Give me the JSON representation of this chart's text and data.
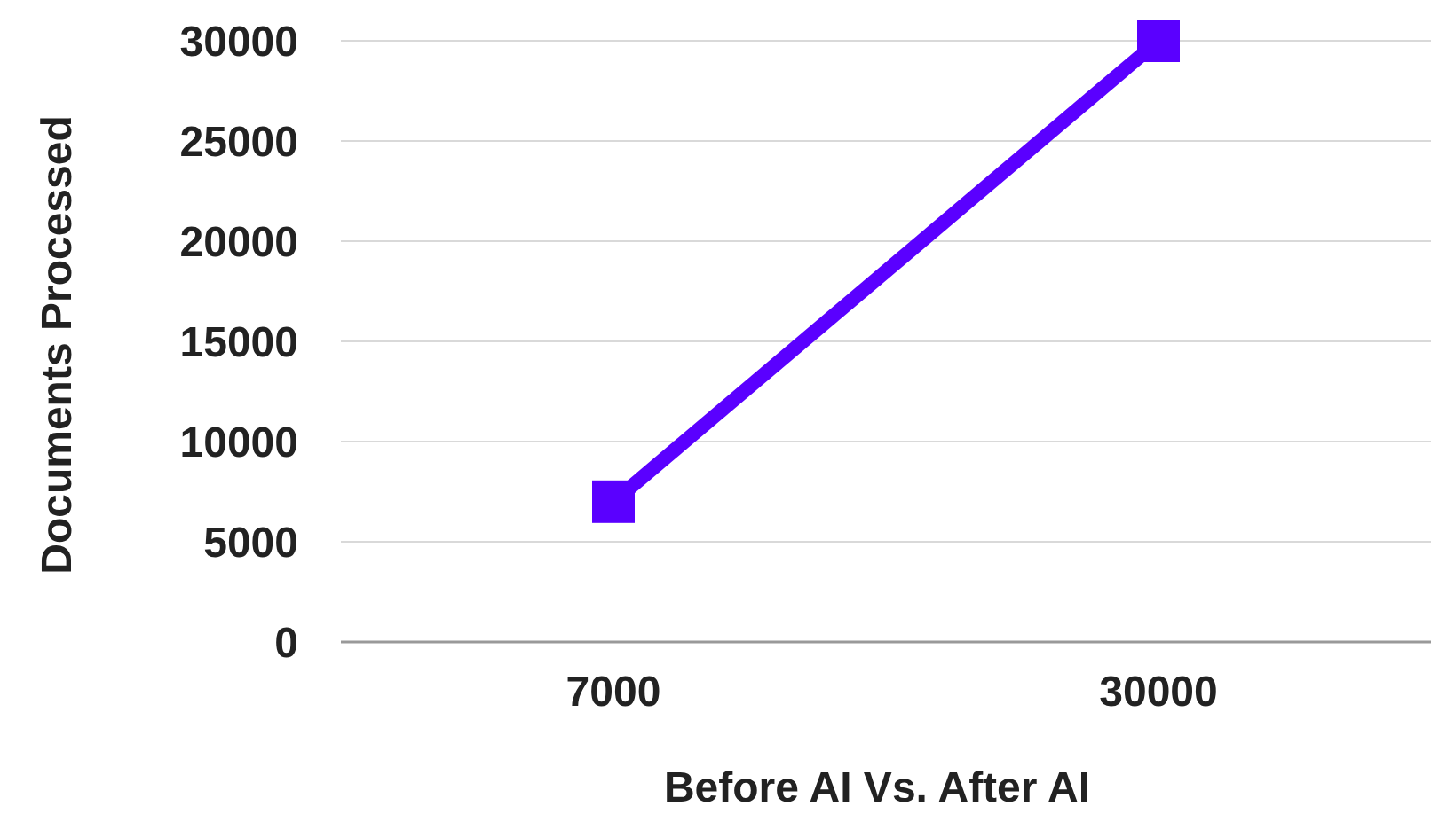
{
  "chart_data": {
    "type": "line",
    "xlabel": "Before AI Vs. After AI",
    "ylabel": "Documents Processed",
    "categories": [
      "7000",
      "30000"
    ],
    "series": [
      {
        "color": "#5a00ff",
        "values": [
          7000,
          30000
        ]
      }
    ],
    "ylim": [
      0,
      30000
    ],
    "yticks": [
      0,
      5000,
      10000,
      15000,
      20000,
      25000,
      30000
    ],
    "grid": "y",
    "marker": "square",
    "line_style": "solid"
  }
}
